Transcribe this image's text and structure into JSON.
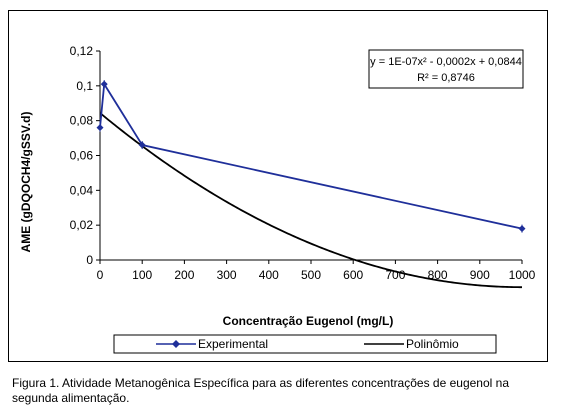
{
  "chart_data": {
    "type": "line",
    "xlabel": "Concentração Eugenol (mg/L)",
    "ylabel": "AME (gDQOCH4/gSSV.d)",
    "xlim": [
      0,
      1000
    ],
    "ylim": [
      0,
      0.12
    ],
    "x_ticks": [
      0,
      100,
      200,
      300,
      400,
      500,
      600,
      700,
      800,
      900,
      1000
    ],
    "y_ticks": [
      0,
      0.02,
      0.04,
      0.06,
      0.08,
      0.1,
      0.12
    ],
    "x_tick_labels": [
      "0",
      "100",
      "200",
      "300",
      "400",
      "500",
      "600",
      "700",
      "800",
      "900",
      "1000"
    ],
    "y_tick_labels": [
      "0",
      "0,02",
      "0,04",
      "0,06",
      "0,08",
      "0,1",
      "0,12"
    ],
    "grid": false,
    "legend_position": "bottom",
    "series": [
      {
        "name": "Experimental",
        "color": "#1f2f9a",
        "marker": "diamond",
        "x": [
          0,
          10,
          100,
          1000
        ],
        "y": [
          0.076,
          0.101,
          0.066,
          0.018
        ]
      },
      {
        "name": "Polinômio",
        "color": "#000000",
        "marker": "none",
        "fit": {
          "a": 1e-07,
          "b": -0.0002,
          "c": 0.0844
        }
      }
    ],
    "annotation": {
      "equation": "y = 1E-07x² - 0,0002x + 0,0844",
      "r2": "R² = 0,8746"
    }
  },
  "caption": {
    "line1": "Figura 1. Atividade Metanogênica Específica para as diferentes concentrações de eugenol na",
    "line2": "segunda alimentação."
  }
}
